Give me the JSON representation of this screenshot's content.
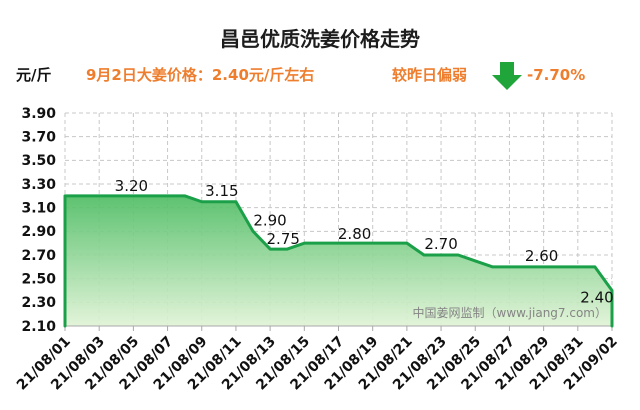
{
  "header": {
    "price_note": "9月2日大姜价格：2.40元/斤左右",
    "trend_label": "较昨日偏弱",
    "trend_icon": "arrow-down-icon",
    "change": "-7.70%"
  },
  "watermark": "中国姜网监制（www.jiang7.com）",
  "colors": {
    "title": "#1d1d1d",
    "accent_orange": "#EE7E2E",
    "trend_green": "#1FA53A",
    "line_green": "#1BA049",
    "fill_top": "#4FBD64",
    "fill_bottom": "#E0F3D6",
    "grid": "#C8C8C8",
    "axis": "#A8A8A8",
    "watermark": "#858585"
  },
  "chart_data": {
    "type": "area",
    "title": "昌邑优质洗姜价格走势",
    "xlabel": "",
    "ylabel": "元/斤",
    "ylim": [
      2.1,
      3.9
    ],
    "y_ticks": [
      3.9,
      3.7,
      3.5,
      3.3,
      3.1,
      2.9,
      2.7,
      2.5,
      2.3,
      2.1
    ],
    "x_ticks": [
      "21/08/01",
      "21/08/03",
      "21/08/05",
      "21/08/07",
      "21/08/09",
      "21/08/11",
      "21/08/13",
      "21/08/15",
      "21/08/17",
      "21/08/19",
      "21/08/21",
      "21/08/23",
      "21/08/25",
      "21/08/27",
      "21/08/29",
      "21/08/31",
      "21/09/02"
    ],
    "x": [
      "21/08/01",
      "21/08/02",
      "21/08/03",
      "21/08/04",
      "21/08/05",
      "21/08/06",
      "21/08/07",
      "21/08/08",
      "21/08/09",
      "21/08/10",
      "21/08/11",
      "21/08/12",
      "21/08/13",
      "21/08/14",
      "21/08/15",
      "21/08/16",
      "21/08/17",
      "21/08/18",
      "21/08/19",
      "21/08/20",
      "21/08/21",
      "21/08/22",
      "21/08/23",
      "21/08/24",
      "21/08/25",
      "21/08/26",
      "21/08/27",
      "21/08/28",
      "21/08/29",
      "21/08/30",
      "21/08/31",
      "21/09/01",
      "21/09/02"
    ],
    "series": [
      {
        "values": [
          3.2,
          3.2,
          3.2,
          3.2,
          3.2,
          3.2,
          3.2,
          3.2,
          3.15,
          3.15,
          3.15,
          2.9,
          2.75,
          2.75,
          2.8,
          2.8,
          2.8,
          2.8,
          2.8,
          2.8,
          2.8,
          2.7,
          2.7,
          2.7,
          2.65,
          2.6,
          2.6,
          2.6,
          2.6,
          2.6,
          2.6,
          2.6,
          2.4
        ]
      }
    ],
    "data_labels": [
      {
        "x": "21/08/05",
        "text": "3.20"
      },
      {
        "x": "21/08/10",
        "text": "3.15"
      },
      {
        "x": "21/08/12",
        "text": "2.90"
      },
      {
        "x": "21/08/14",
        "text": "2.75"
      },
      {
        "x": "21/08/18",
        "text": "2.80"
      },
      {
        "x": "21/08/23",
        "text": "2.70"
      },
      {
        "x": "21/08/29",
        "text": "2.60"
      },
      {
        "x": "21/09/02",
        "text": "2.40"
      }
    ],
    "grid": true
  }
}
